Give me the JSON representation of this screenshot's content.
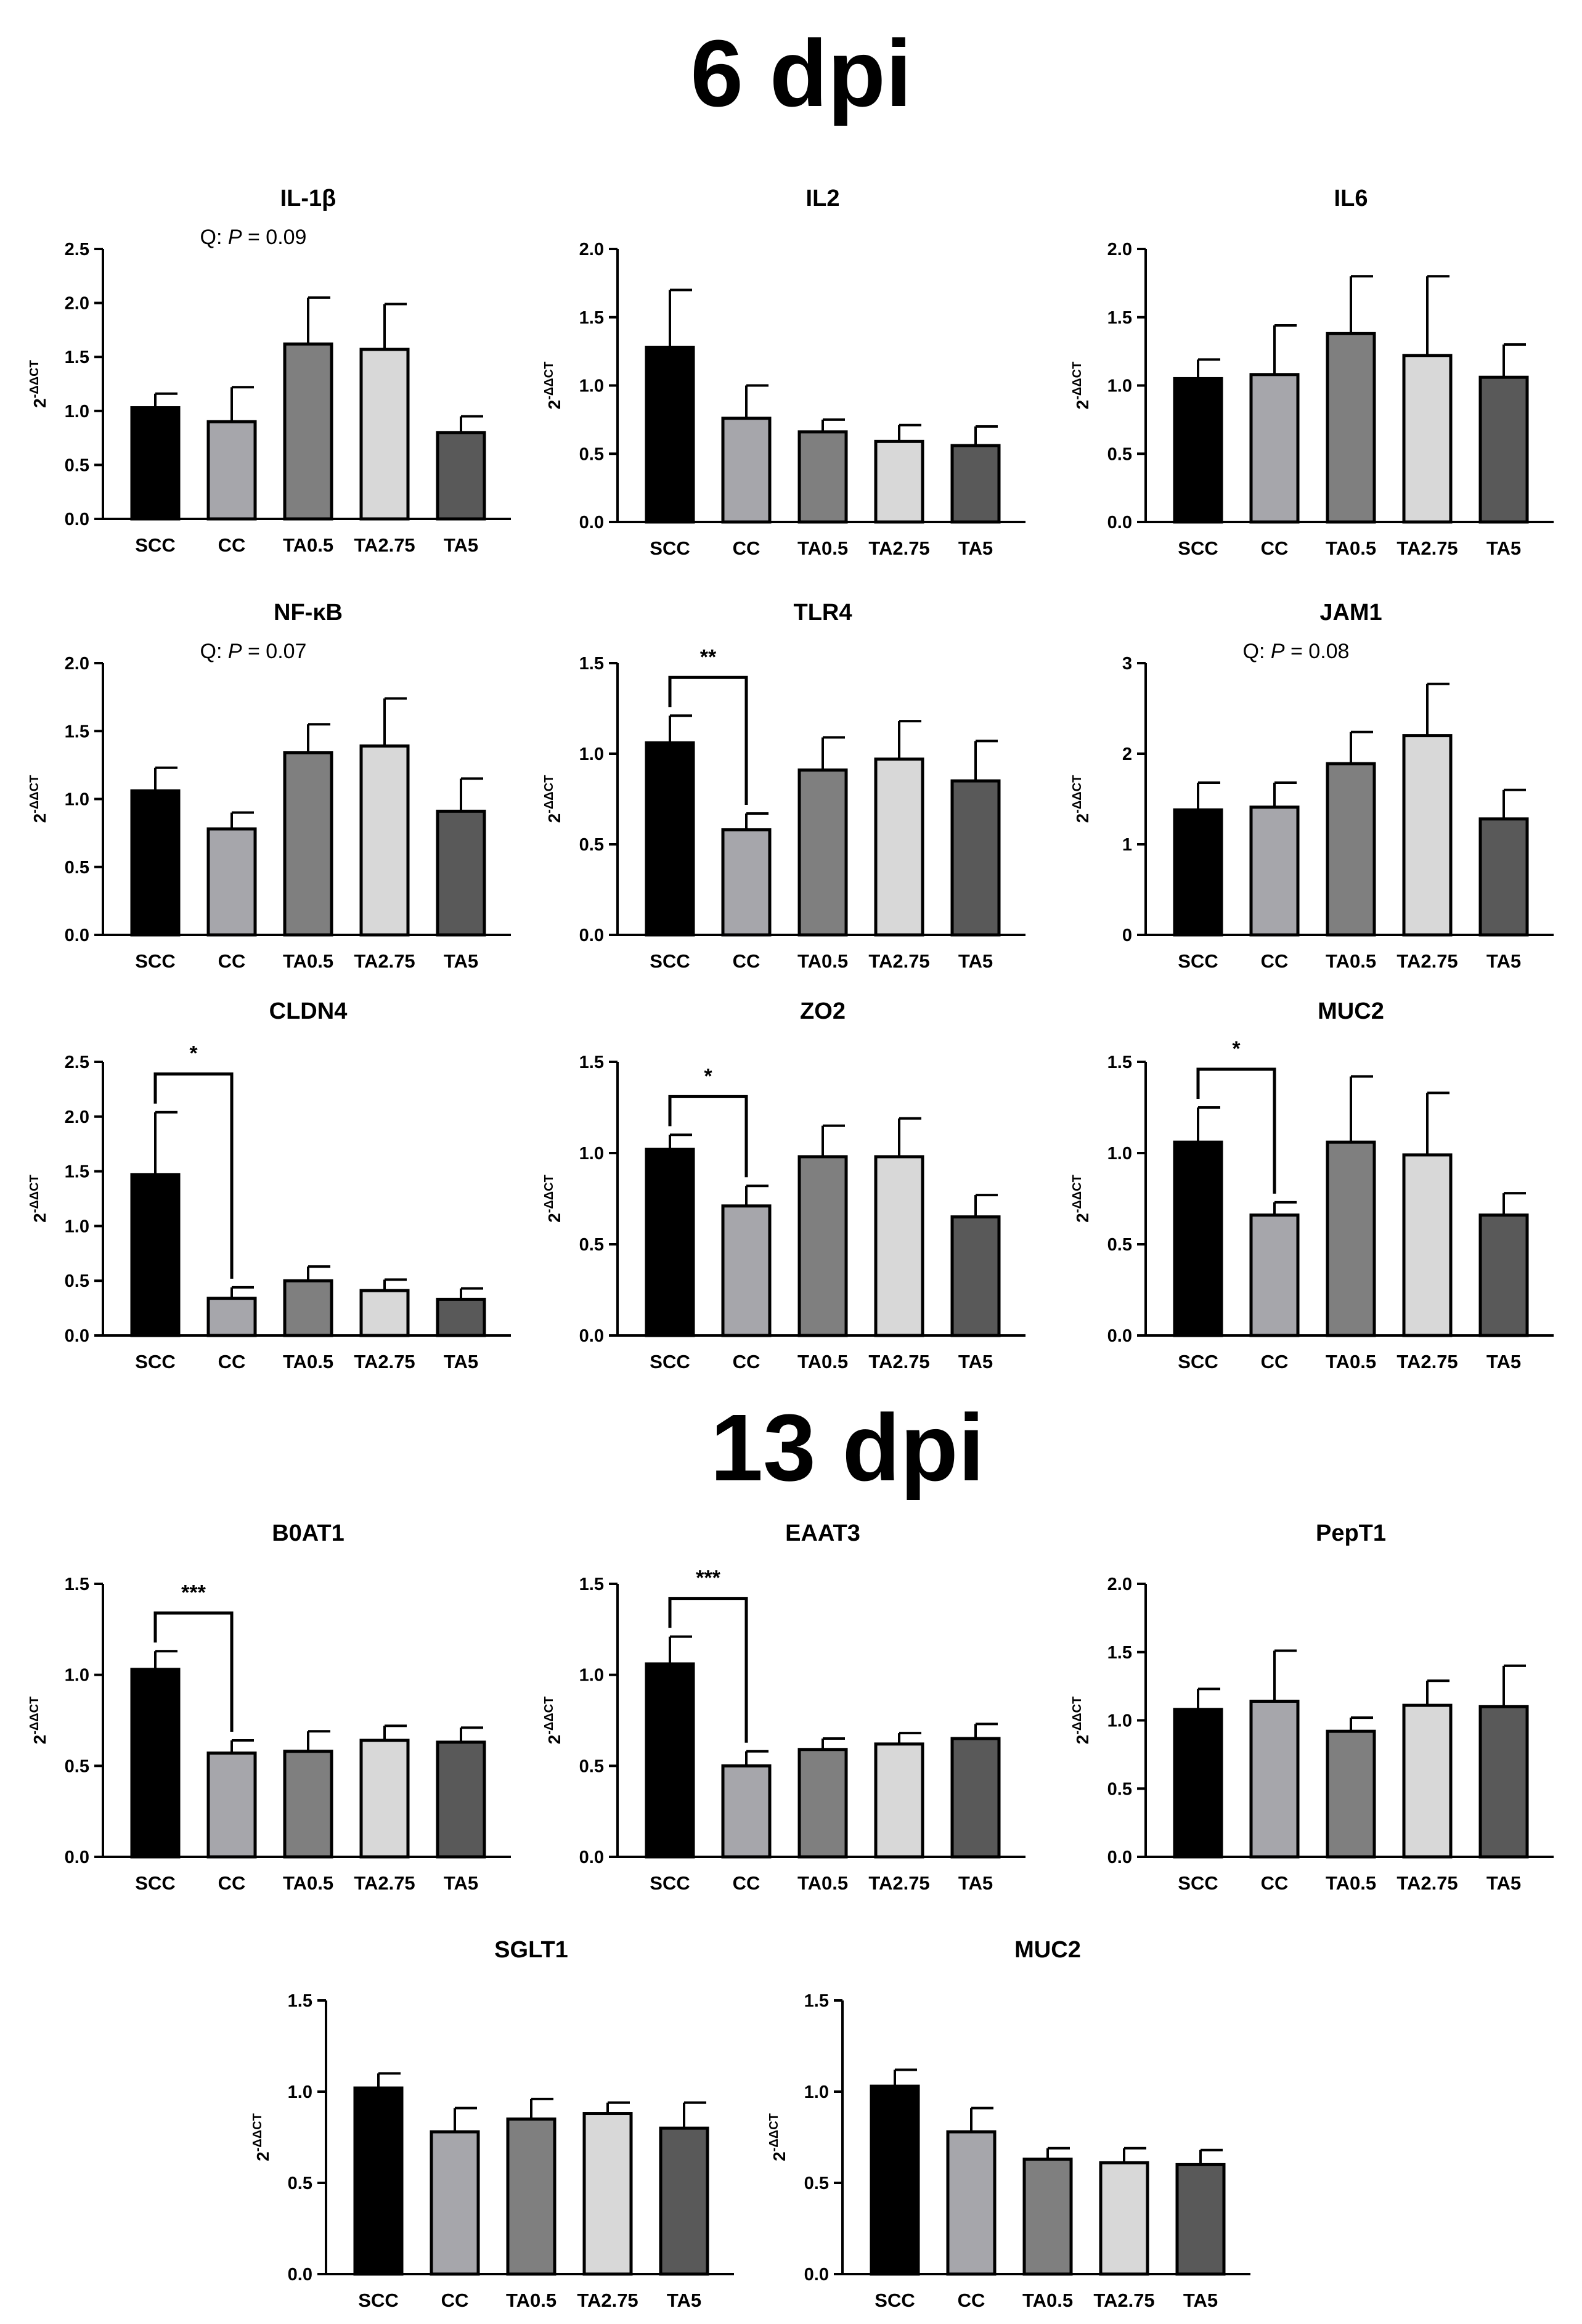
{
  "sections": [
    {
      "title": "6 dpi"
    },
    {
      "title": "13 dpi"
    }
  ],
  "palette": {
    "SCC": "#000000",
    "CC": "#a6a6ab",
    "TA0.5": "#7f7f7f",
    "TA2.75": "#d8d8d8",
    "TA5": "#595959"
  },
  "chart_data": [
    {
      "type": "bar",
      "title": "IL-1β",
      "categories": [
        "SCC",
        "CC",
        "TA0.5",
        "TA2.75",
        "TA5"
      ],
      "values": [
        1.03,
        0.9,
        1.62,
        1.57,
        0.8
      ],
      "errors": [
        0.13,
        0.32,
        0.43,
        0.42,
        0.15
      ],
      "ylabel": "2-ΔΔCT",
      "ylim": [
        0,
        2.5
      ],
      "yticks": [
        "0.0",
        "0.5",
        "1.0",
        "1.5",
        "2.0",
        "2.5"
      ],
      "annotation": {
        "prefix": "Q: ",
        "italic": "P",
        "suffix": " = 0.09"
      }
    },
    {
      "type": "bar",
      "title": "IL2",
      "categories": [
        "SCC",
        "CC",
        "TA0.5",
        "TA2.75",
        "TA5"
      ],
      "values": [
        1.28,
        0.76,
        0.66,
        0.59,
        0.56
      ],
      "errors": [
        0.42,
        0.24,
        0.09,
        0.12,
        0.14
      ],
      "ylabel": "2-ΔΔCT",
      "ylim": [
        0,
        2.0
      ],
      "yticks": [
        "0.0",
        "0.5",
        "1.0",
        "1.5",
        "2.0"
      ]
    },
    {
      "type": "bar",
      "title": "IL6",
      "categories": [
        "SCC",
        "CC",
        "TA0.5",
        "TA2.75",
        "TA5"
      ],
      "values": [
        1.05,
        1.08,
        1.38,
        1.22,
        1.06
      ],
      "errors": [
        0.14,
        0.36,
        0.42,
        0.58,
        0.24
      ],
      "ylabel": "2-ΔΔCT",
      "ylim": [
        0,
        2.0
      ],
      "yticks": [
        "0.0",
        "0.5",
        "1.0",
        "1.5",
        "2.0"
      ]
    },
    {
      "type": "bar",
      "title": "NF-κB",
      "categories": [
        "SCC",
        "CC",
        "TA0.5",
        "TA2.75",
        "TA5"
      ],
      "values": [
        1.06,
        0.78,
        1.34,
        1.39,
        0.91
      ],
      "errors": [
        0.17,
        0.12,
        0.21,
        0.35,
        0.24
      ],
      "ylabel": "2-ΔΔCT",
      "ylim": [
        0,
        2.0
      ],
      "yticks": [
        "0.0",
        "0.5",
        "1.0",
        "1.5",
        "2.0"
      ],
      "annotation": {
        "prefix": "Q: ",
        "italic": "P",
        "suffix": " = 0.07"
      }
    },
    {
      "type": "bar",
      "title": "TLR4",
      "categories": [
        "SCC",
        "CC",
        "TA0.5",
        "TA2.75",
        "TA5"
      ],
      "values": [
        1.06,
        0.58,
        0.91,
        0.97,
        0.85
      ],
      "errors": [
        0.15,
        0.09,
        0.18,
        0.21,
        0.22
      ],
      "ylabel": "2-ΔΔCT",
      "ylim": [
        0,
        1.5
      ],
      "yticks": [
        "0.0",
        "0.5",
        "1.0",
        "1.5"
      ],
      "significance": {
        "from": 0,
        "to": 1,
        "label": "**"
      }
    },
    {
      "type": "bar",
      "title": "JAM1",
      "categories": [
        "SCC",
        "CC",
        "TA0.5",
        "TA2.75",
        "TA5"
      ],
      "values": [
        1.38,
        1.41,
        1.89,
        2.2,
        1.28
      ],
      "errors": [
        0.3,
        0.27,
        0.35,
        0.57,
        0.32
      ],
      "ylabel": "2-ΔΔCT",
      "ylim": [
        0,
        3
      ],
      "yticks": [
        "0",
        "1",
        "2",
        "3"
      ],
      "annotation": {
        "prefix": "Q: ",
        "italic": "P",
        "suffix": " = 0.08"
      }
    },
    {
      "type": "bar",
      "title": "CLDN4",
      "categories": [
        "SCC",
        "CC",
        "TA0.5",
        "TA2.75",
        "TA5"
      ],
      "values": [
        1.47,
        0.34,
        0.5,
        0.41,
        0.33
      ],
      "errors": [
        0.57,
        0.1,
        0.13,
        0.1,
        0.1
      ],
      "ylabel": "2-ΔΔCT",
      "ylim": [
        0,
        2.5
      ],
      "yticks": [
        "0.0",
        "0.5",
        "1.0",
        "1.5",
        "2.0",
        "2.5"
      ],
      "significance": {
        "from": 0,
        "to": 1,
        "label": "*"
      }
    },
    {
      "type": "bar",
      "title": "ZO2",
      "categories": [
        "SCC",
        "CC",
        "TA0.5",
        "TA2.75",
        "TA5"
      ],
      "values": [
        1.02,
        0.71,
        0.98,
        0.98,
        0.65
      ],
      "errors": [
        0.08,
        0.11,
        0.17,
        0.21,
        0.12
      ],
      "ylabel": "2-ΔΔCT",
      "ylim": [
        0,
        1.5
      ],
      "yticks": [
        "0.0",
        "0.5",
        "1.0",
        "1.5"
      ],
      "significance": {
        "from": 0,
        "to": 1,
        "label": "*"
      }
    },
    {
      "type": "bar",
      "title": "MUC2",
      "categories": [
        "SCC",
        "CC",
        "TA0.5",
        "TA2.75",
        "TA5"
      ],
      "values": [
        1.06,
        0.66,
        1.06,
        0.99,
        0.66
      ],
      "errors": [
        0.19,
        0.07,
        0.36,
        0.34,
        0.12
      ],
      "ylabel": "2-ΔΔCT",
      "ylim": [
        0,
        1.5
      ],
      "yticks": [
        "0.0",
        "0.5",
        "1.0",
        "1.5"
      ],
      "significance": {
        "from": 0,
        "to": 1,
        "label": "*"
      }
    },
    {
      "type": "bar",
      "title": "B0AT1",
      "categories": [
        "SCC",
        "CC",
        "TA0.5",
        "TA2.75",
        "TA5"
      ],
      "values": [
        1.03,
        0.57,
        0.58,
        0.64,
        0.63
      ],
      "errors": [
        0.1,
        0.07,
        0.11,
        0.08,
        0.08
      ],
      "ylabel": "2-ΔΔCT",
      "ylim": [
        0,
        1.5
      ],
      "yticks": [
        "0.0",
        "0.5",
        "1.0",
        "1.5"
      ],
      "significance": {
        "from": 0,
        "to": 1,
        "label": "***"
      }
    },
    {
      "type": "bar",
      "title": "EAAT3",
      "categories": [
        "SCC",
        "CC",
        "TA0.5",
        "TA2.75",
        "TA5"
      ],
      "values": [
        1.06,
        0.5,
        0.59,
        0.62,
        0.65
      ],
      "errors": [
        0.15,
        0.08,
        0.06,
        0.06,
        0.08
      ],
      "ylabel": "2-ΔΔCT",
      "ylim": [
        0,
        1.5
      ],
      "yticks": [
        "0.0",
        "0.5",
        "1.0",
        "1.5"
      ],
      "significance": {
        "from": 0,
        "to": 1,
        "label": "***"
      }
    },
    {
      "type": "bar",
      "title": "PepT1",
      "categories": [
        "SCC",
        "CC",
        "TA0.5",
        "TA2.75",
        "TA5"
      ],
      "values": [
        1.08,
        1.14,
        0.92,
        1.11,
        1.1
      ],
      "errors": [
        0.15,
        0.37,
        0.1,
        0.18,
        0.3
      ],
      "ylabel": "2-ΔΔCT",
      "ylim": [
        0,
        2.0
      ],
      "yticks": [
        "0.0",
        "0.5",
        "1.0",
        "1.5",
        "2.0"
      ]
    },
    {
      "type": "bar",
      "title": "SGLT1",
      "categories": [
        "SCC",
        "CC",
        "TA0.5",
        "TA2.75",
        "TA5"
      ],
      "values": [
        1.02,
        0.78,
        0.85,
        0.88,
        0.8
      ],
      "errors": [
        0.08,
        0.13,
        0.11,
        0.06,
        0.14
      ],
      "ylabel": "2-ΔΔCT",
      "ylim": [
        0,
        1.5
      ],
      "yticks": [
        "0.0",
        "0.5",
        "1.0",
        "1.5"
      ]
    },
    {
      "type": "bar",
      "title": "MUC2",
      "categories": [
        "SCC",
        "CC",
        "TA0.5",
        "TA2.75",
        "TA5"
      ],
      "values": [
        1.03,
        0.78,
        0.63,
        0.61,
        0.6
      ],
      "errors": [
        0.09,
        0.13,
        0.06,
        0.08,
        0.08
      ],
      "ylabel": "2-ΔΔCT",
      "ylim": [
        0,
        1.5
      ],
      "yticks": [
        "0.0",
        "0.5",
        "1.0",
        "1.5"
      ]
    }
  ]
}
